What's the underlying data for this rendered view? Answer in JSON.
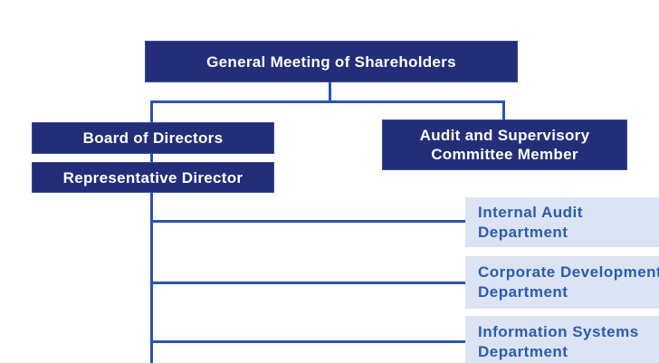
{
  "diagram": {
    "type": "org-chart",
    "nodes": {
      "general_meeting": {
        "label": "General Meeting of Shareholders"
      },
      "board_of_directors": {
        "label": "Board of Directors"
      },
      "representative_director": {
        "label": "Representative Director"
      },
      "audit_committee": {
        "label": "Audit and Supervisory Committee Member"
      },
      "departments": [
        {
          "label": "Internal Audit Department"
        },
        {
          "label": "Corporate Development Department"
        },
        {
          "label": "Information Systems Department"
        }
      ]
    },
    "edges": [
      {
        "from": "General Meeting of Shareholders",
        "to": "Board of Directors"
      },
      {
        "from": "General Meeting of Shareholders",
        "to": "Audit and Supervisory Committee Member"
      },
      {
        "from": "Board of Directors",
        "to": "Representative Director"
      },
      {
        "from": "Representative Director",
        "to": "Internal Audit Department"
      },
      {
        "from": "Representative Director",
        "to": "Corporate Development Department"
      },
      {
        "from": "Representative Director",
        "to": "Information Systems Department"
      }
    ],
    "colors": {
      "node_fill": "#242e78",
      "node_text": "#ffffff",
      "connector_line": "#2b55ac",
      "department_fill": "#dce3f2",
      "department_text": "#2a5dae",
      "background": "#ffffff"
    }
  }
}
